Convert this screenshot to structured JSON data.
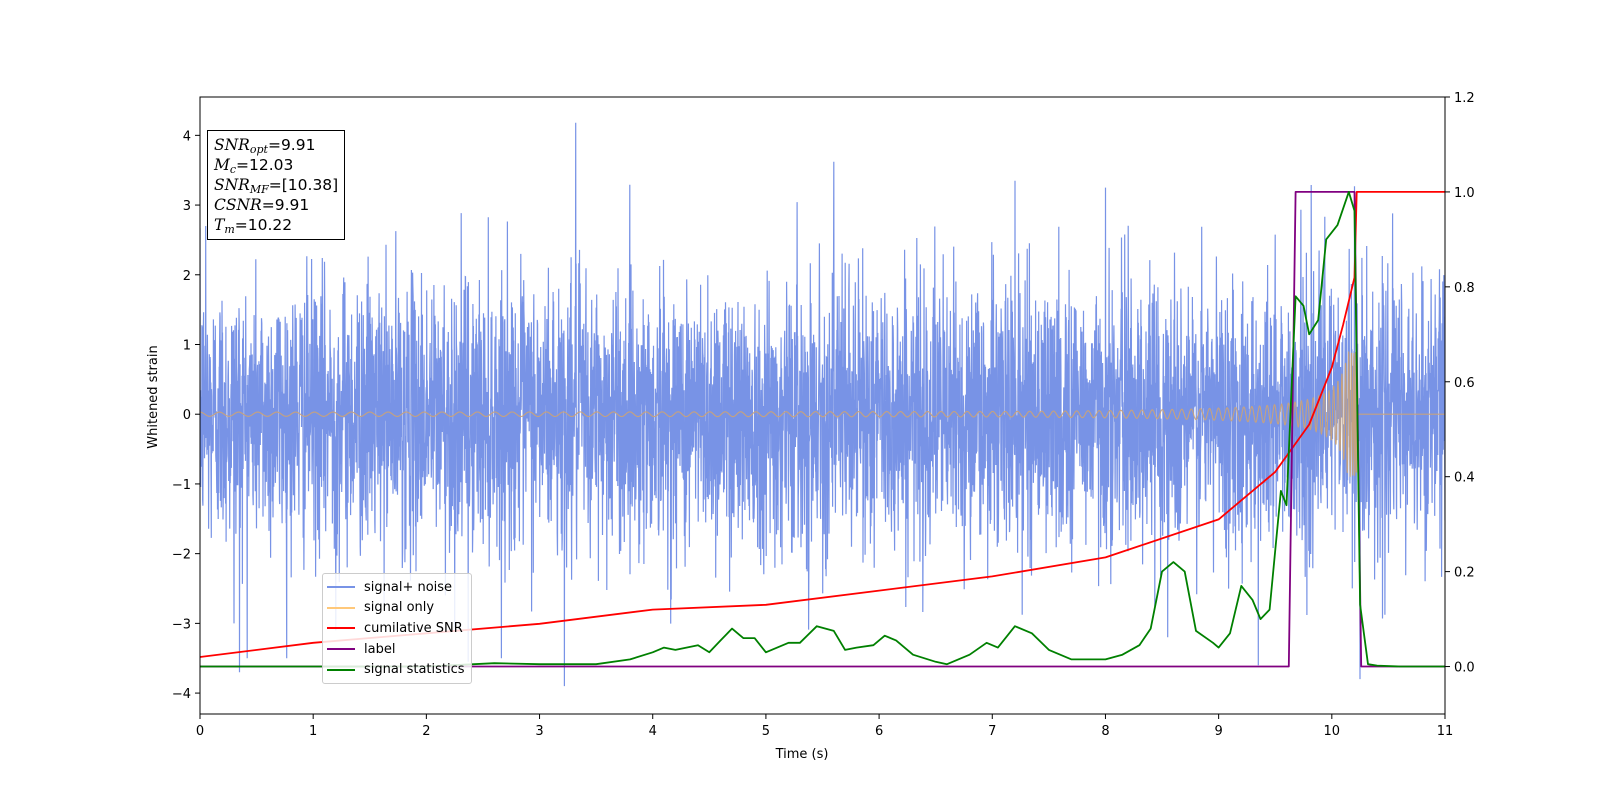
{
  "chart_data": {
    "type": "line",
    "xlabel": "Time (s)",
    "ylabel": "Whitened strain",
    "xlim": [
      0,
      11
    ],
    "ylim": [
      -4.3,
      4.55
    ],
    "y2lim": [
      -0.1,
      1.2
    ],
    "xticks": [
      "0",
      "1",
      "2",
      "3",
      "4",
      "5",
      "6",
      "7",
      "8",
      "9",
      "10",
      "11"
    ],
    "yticks": [
      "−4",
      "−3",
      "−2",
      "−1",
      "0",
      "1",
      "2",
      "3",
      "4"
    ],
    "y2ticks": [
      "0.0",
      "0.2",
      "0.4",
      "0.6",
      "0.8",
      "1.0",
      "1.2"
    ],
    "legend_position": "lower-left",
    "grid": false,
    "series": [
      {
        "name": "signal+ noise",
        "color": "#7893e6",
        "axis": "left",
        "description": "noise-dominated strain, amplitude roughly ±2 to ±3.5",
        "spikes": [
          [
            0.05,
            2.7
          ],
          [
            0.3,
            -3.0
          ],
          [
            0.35,
            -3.7
          ],
          [
            1.2,
            -3.1
          ],
          [
            2.25,
            -3.05
          ],
          [
            2.37,
            -3.55
          ],
          [
            3.22,
            -3.9
          ],
          [
            3.32,
            4.18
          ],
          [
            5.6,
            3.62
          ],
          [
            7.2,
            3.35
          ],
          [
            8.0,
            3.25
          ],
          [
            8.55,
            -3.2
          ],
          [
            9.35,
            -3.6
          ],
          [
            10.25,
            -3.8
          ],
          [
            10.2,
            3.27
          ]
        ]
      },
      {
        "name": "signal only",
        "color": "#ffc87a",
        "axis": "left",
        "description": "chirp waveform, amplitude growing to about 0.9 at merger time 10.22 s",
        "merger_time": 10.22,
        "amp_start": 0.03,
        "amp_peak": 0.9
      },
      {
        "name": "cumilative SNR",
        "color": "#ff0000",
        "axis": "right",
        "x": [
          0,
          1,
          2,
          3,
          4,
          5,
          6,
          7,
          8,
          9,
          9.5,
          9.8,
          10.0,
          10.1,
          10.2,
          10.22,
          11
        ],
        "y": [
          0.02,
          0.05,
          0.07,
          0.09,
          0.12,
          0.13,
          0.16,
          0.19,
          0.23,
          0.31,
          0.41,
          0.51,
          0.63,
          0.72,
          0.82,
          1.0,
          1.0
        ]
      },
      {
        "name": "label",
        "color": "#800080",
        "axis": "right",
        "x": [
          0,
          9.62,
          9.68,
          10.2,
          10.26,
          11
        ],
        "y": [
          0,
          0,
          1,
          1,
          0,
          0
        ]
      },
      {
        "name": "signal statistics",
        "color": "#008000",
        "axis": "right",
        "x": [
          0,
          2,
          2.6,
          3.0,
          3.5,
          3.8,
          4.0,
          4.1,
          4.2,
          4.4,
          4.5,
          4.6,
          4.7,
          4.8,
          4.9,
          5.0,
          5.2,
          5.3,
          5.45,
          5.6,
          5.7,
          5.8,
          5.95,
          6.05,
          6.15,
          6.3,
          6.5,
          6.6,
          6.8,
          6.95,
          7.05,
          7.2,
          7.35,
          7.5,
          7.7,
          8.0,
          8.15,
          8.3,
          8.4,
          8.5,
          8.6,
          8.7,
          8.8,
          8.95,
          9.0,
          9.1,
          9.2,
          9.3,
          9.37,
          9.45,
          9.55,
          9.6,
          9.68,
          9.75,
          9.8,
          9.88,
          9.95,
          10.05,
          10.15,
          10.2,
          10.25,
          10.32,
          10.4,
          10.6,
          11
        ],
        "y": [
          0,
          0,
          0.007,
          0.005,
          0.005,
          0.015,
          0.03,
          0.04,
          0.035,
          0.045,
          0.03,
          0.055,
          0.08,
          0.06,
          0.06,
          0.03,
          0.05,
          0.05,
          0.085,
          0.075,
          0.035,
          0.04,
          0.045,
          0.065,
          0.055,
          0.025,
          0.01,
          0.005,
          0.025,
          0.05,
          0.04,
          0.085,
          0.07,
          0.035,
          0.015,
          0.015,
          0.025,
          0.045,
          0.08,
          0.2,
          0.22,
          0.2,
          0.075,
          0.05,
          0.04,
          0.07,
          0.17,
          0.14,
          0.1,
          0.12,
          0.37,
          0.34,
          0.78,
          0.76,
          0.7,
          0.73,
          0.9,
          0.93,
          1.0,
          0.96,
          0.13,
          0.005,
          0.002,
          0,
          0
        ]
      }
    ]
  },
  "info_box": {
    "snr_opt_label": "SNR",
    "snr_opt_sub": "opt",
    "snr_opt_value": "=9.91",
    "mc_label": "M",
    "mc_sub": "c",
    "mc_value": "=12.03",
    "snr_mf_label": "SNR",
    "snr_mf_sub": "MF",
    "snr_mf_value": "=[10.38]",
    "csnr_label": "CSNR",
    "csnr_value": "=9.91",
    "tm_label": "T",
    "tm_sub": "m",
    "tm_value": "=10.22"
  },
  "legend": {
    "items": [
      {
        "label": "signal+ noise",
        "color": "#7893e6"
      },
      {
        "label": "signal only",
        "color": "#ffc87a"
      },
      {
        "label": "cumilative SNR",
        "color": "#ff0000"
      },
      {
        "label": "label",
        "color": "#800080"
      },
      {
        "label": "signal statistics",
        "color": "#008000"
      }
    ]
  }
}
